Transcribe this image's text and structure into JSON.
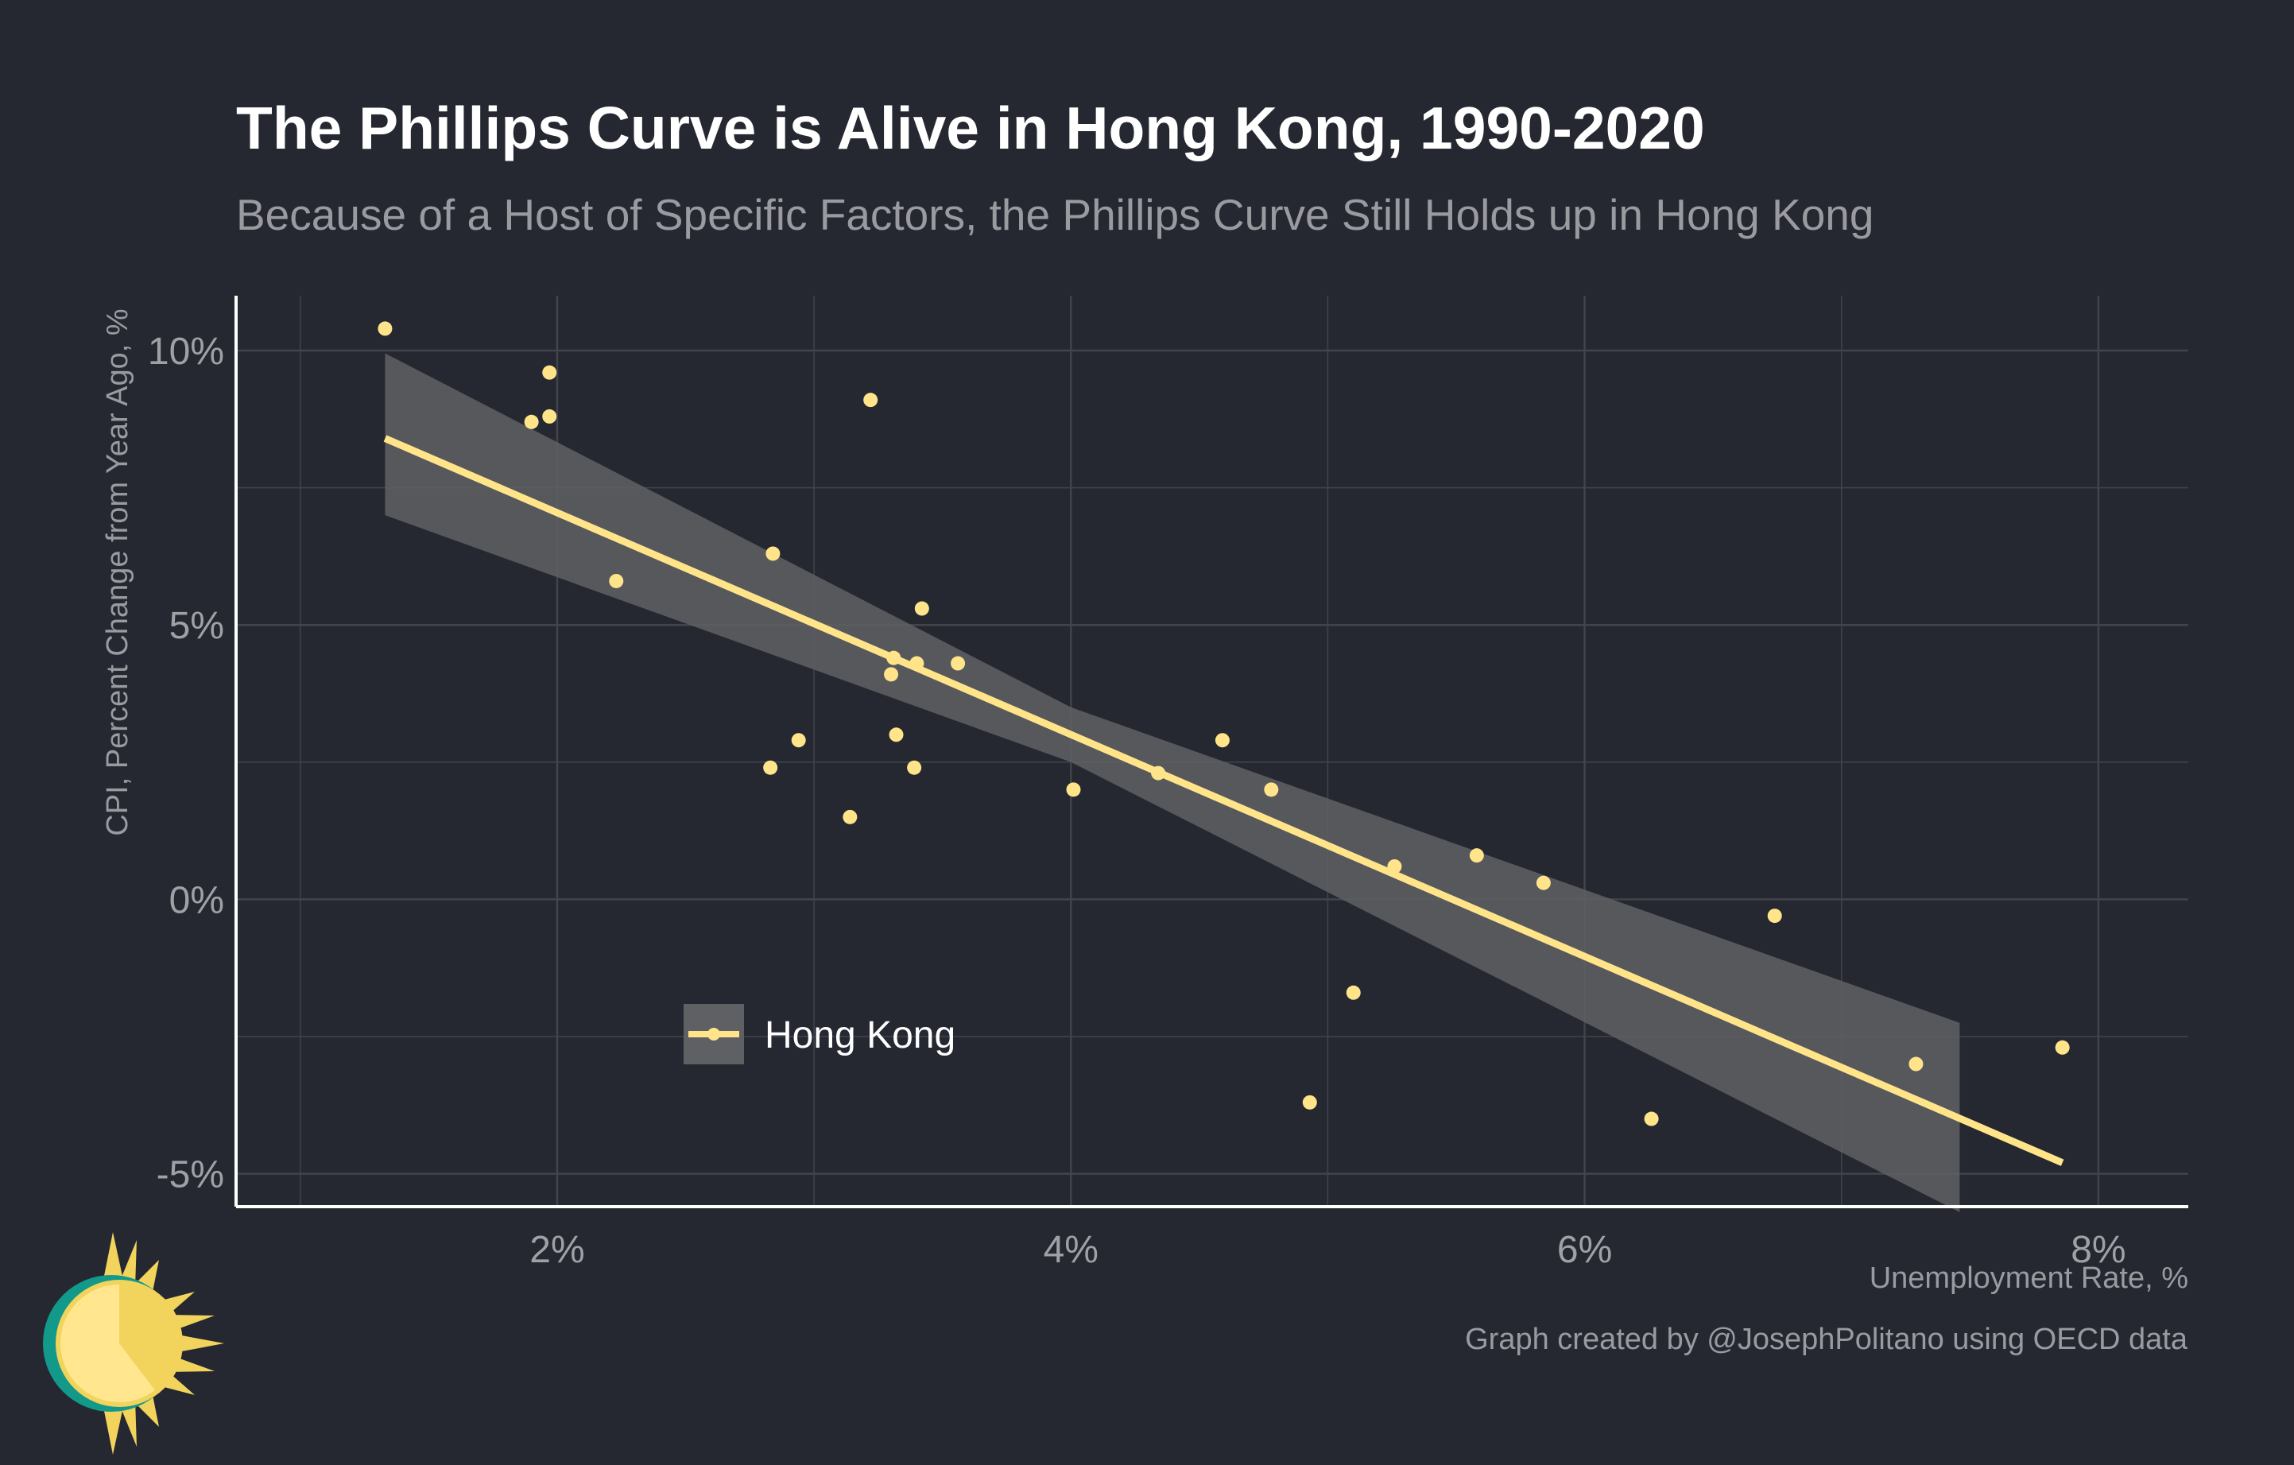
{
  "title": "The Phillips Curve is Alive in Hong Kong, 1990-2020",
  "subtitle": "Because of a Host of Specific Factors, the Phillips Curve Still Holds up in Hong Kong",
  "source": "Graph created by @JosephPolitano using OECD data",
  "colors": {
    "background": "#252831",
    "point": "#ffe48a",
    "fit_line": "#ffe48a",
    "ribbon": "#5f6064",
    "grid": "#41444b",
    "axis": "#ffffff",
    "tick_text": "#a0a1a5"
  },
  "chart_data": {
    "type": "scatter",
    "xlabel": "Unemployment Rate, %",
    "ylabel": "CPI, Percent Change from Year Ago, %",
    "xlim": [
      0.75,
      8.35
    ],
    "ylim": [
      -5.6,
      11.0
    ],
    "x_ticks": [
      2,
      4,
      6,
      8
    ],
    "x_tick_labels": [
      "2%",
      "4%",
      "6%",
      "8%"
    ],
    "y_ticks": [
      10,
      5,
      0,
      -5
    ],
    "y_tick_labels": [
      "10%",
      "5%",
      "0%",
      "-5%"
    ],
    "x_minor_ticks": [
      1,
      3,
      5,
      7
    ],
    "y_minor_ticks": [
      7.5,
      2.5,
      -2.5
    ],
    "grid": true,
    "legend": {
      "position": "bottom-left inside",
      "entries": [
        "Hong Kong"
      ]
    },
    "series": [
      {
        "name": "Hong Kong",
        "points": [
          {
            "x": 1.33,
            "y": 10.4
          },
          {
            "x": 1.97,
            "y": 9.6
          },
          {
            "x": 1.9,
            "y": 8.7
          },
          {
            "x": 1.97,
            "y": 8.8
          },
          {
            "x": 2.23,
            "y": 5.8
          },
          {
            "x": 2.84,
            "y": 6.3
          },
          {
            "x": 3.22,
            "y": 9.1
          },
          {
            "x": 3.42,
            "y": 5.3
          },
          {
            "x": 3.31,
            "y": 4.4
          },
          {
            "x": 3.4,
            "y": 4.3
          },
          {
            "x": 3.56,
            "y": 4.3
          },
          {
            "x": 3.3,
            "y": 4.1
          },
          {
            "x": 2.94,
            "y": 2.9
          },
          {
            "x": 2.83,
            "y": 2.4
          },
          {
            "x": 3.32,
            "y": 3.0
          },
          {
            "x": 3.39,
            "y": 2.4
          },
          {
            "x": 3.14,
            "y": 1.5
          },
          {
            "x": 4.01,
            "y": 2.0
          },
          {
            "x": 4.34,
            "y": 2.3
          },
          {
            "x": 4.59,
            "y": 2.9
          },
          {
            "x": 4.78,
            "y": 2.0
          },
          {
            "x": 5.26,
            "y": 0.6
          },
          {
            "x": 5.58,
            "y": 0.8
          },
          {
            "x": 5.84,
            "y": 0.3
          },
          {
            "x": 5.1,
            "y": -1.7
          },
          {
            "x": 4.93,
            "y": -3.7
          },
          {
            "x": 6.74,
            "y": -0.3
          },
          {
            "x": 6.26,
            "y": -4.0
          },
          {
            "x": 7.29,
            "y": -3.0
          },
          {
            "x": 7.86,
            "y": -2.7
          }
        ],
        "fit": {
          "x": [
            1.33,
            7.86
          ],
          "y": [
            8.4,
            -4.8
          ]
        },
        "ribbon": [
          {
            "x": 1.33,
            "lower": 7.0,
            "upper": 9.95
          },
          {
            "x": 4.0,
            "lower": 2.5,
            "upper": 3.5
          },
          {
            "x": 7.46,
            "lower": -5.7,
            "upper": -2.25
          }
        ]
      }
    ]
  }
}
